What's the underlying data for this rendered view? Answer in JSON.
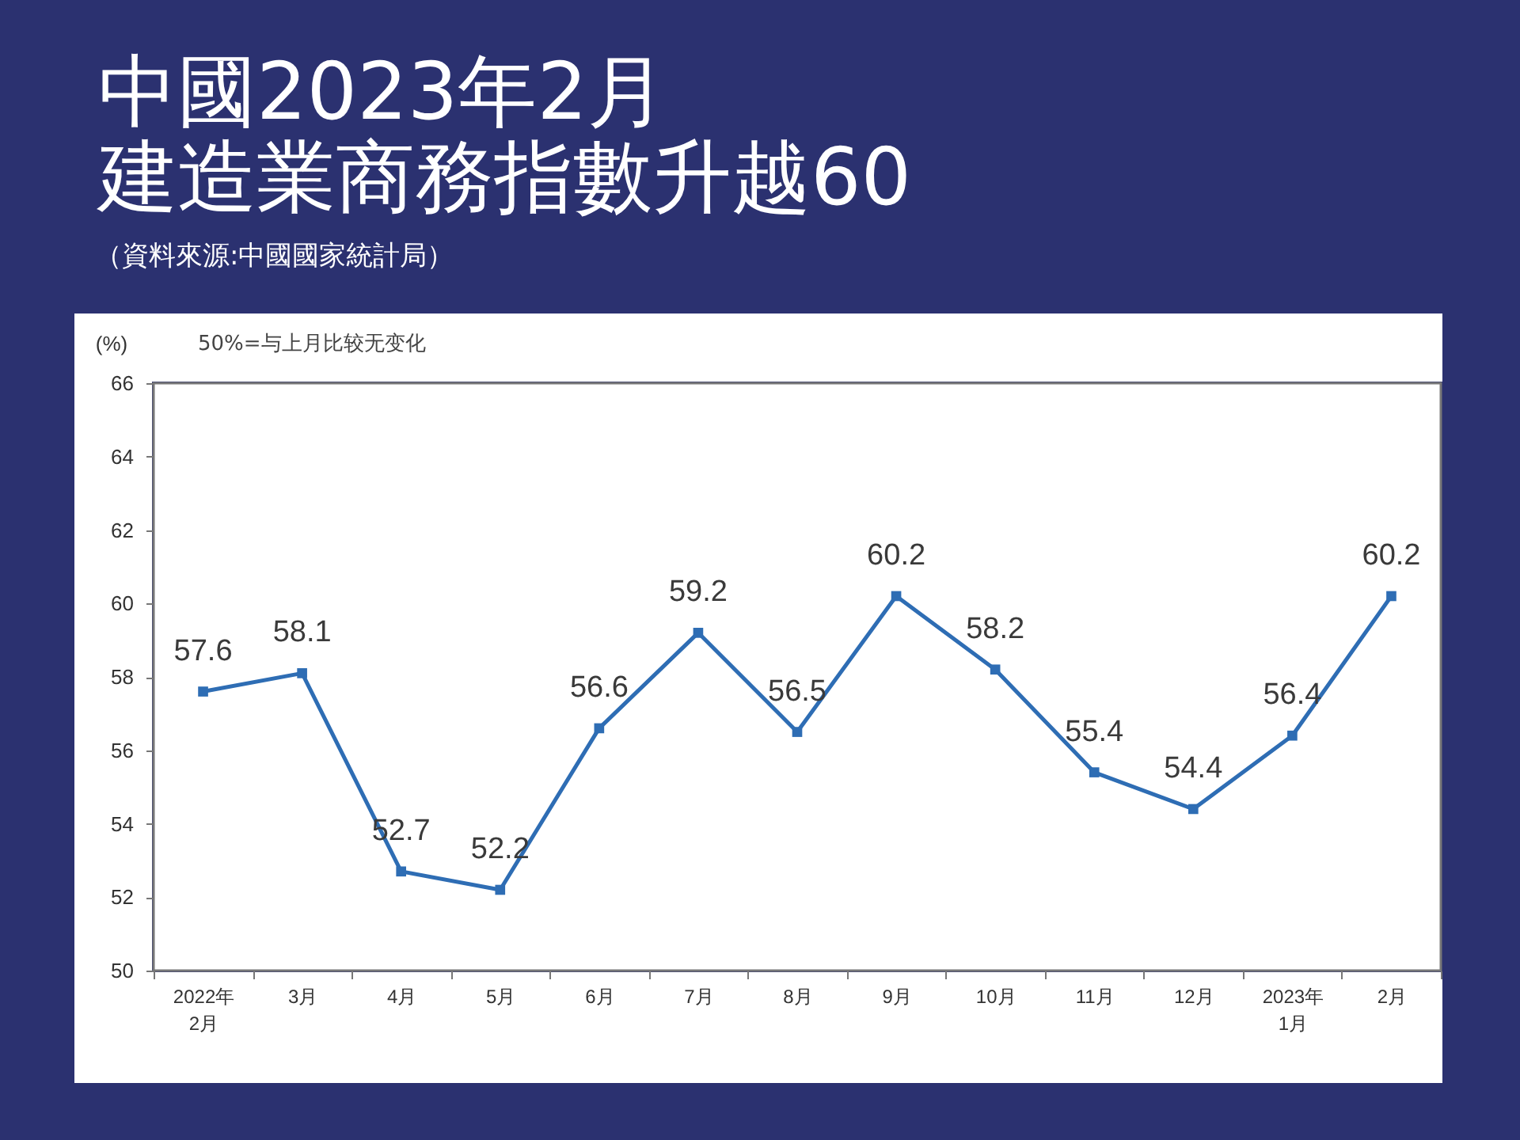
{
  "chart_data": {
    "type": "line",
    "title": "中國2023年2月",
    "subtitle": "建造業商務指數升越60",
    "ylabel": "(%)",
    "annotations": [
      "（資料來源:中國國家統計局）",
      "50%=与上月比较无变化"
    ],
    "categories": [
      "2022年\n2月",
      "3月",
      "4月",
      "5月",
      "6月",
      "7月",
      "8月",
      "9月",
      "10月",
      "11月",
      "12月",
      "2023年\n1月",
      "2月"
    ],
    "series": [
      {
        "color": "#2e6db4",
        "values": [
          57.6,
          58.1,
          52.7,
          52.2,
          56.6,
          59.2,
          56.5,
          60.2,
          58.2,
          55.4,
          54.4,
          56.4,
          60.2
        ]
      }
    ],
    "ylim": [
      50,
      66
    ],
    "yticks": [
      50,
      52,
      54,
      56,
      58,
      60,
      62,
      64,
      66
    ],
    "grid": false,
    "marker": "square",
    "line_style": "solid",
    "data_labels": true
  }
}
